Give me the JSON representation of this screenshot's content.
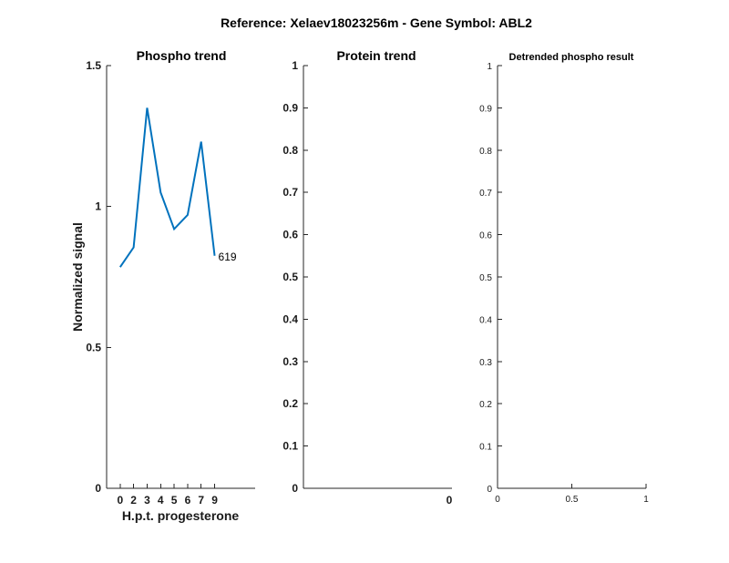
{
  "figure": {
    "suptitle": "Reference:  Xelaev18023256m - Gene Symbol:  ABL2"
  },
  "chart_data": [
    {
      "type": "line",
      "title": "Phospho trend",
      "xlabel": "H.p.t. progesterone",
      "ylabel": "Normalized signal",
      "xlim": [
        -1,
        10
      ],
      "ylim": [
        0,
        1.5
      ],
      "xticks": [
        "0",
        "2",
        "3",
        "4",
        "5",
        "6",
        "7",
        "9"
      ],
      "yticks": [
        "0",
        "0.5",
        "1",
        "1.5"
      ],
      "grid": false,
      "line_color": "#0072BD",
      "series": [
        {
          "x": [
            "0",
            "2",
            "3",
            "4",
            "5",
            "6",
            "7",
            "9"
          ],
          "values": [
            0.785,
            0.855,
            1.35,
            1.05,
            0.92,
            0.97,
            1.23,
            0.825
          ]
        }
      ],
      "annotation": {
        "text": "619",
        "at_category": "9"
      }
    },
    {
      "type": "line",
      "title": "Protein trend",
      "xlabel": "",
      "ylabel": "",
      "ylim": [
        0,
        1
      ],
      "xticks": [
        "0"
      ],
      "yticks": [
        "0",
        "0.1",
        "0.2",
        "0.3",
        "0.4",
        "0.5",
        "0.6",
        "0.7",
        "0.8",
        "0.9",
        "1"
      ],
      "grid": false,
      "series": []
    },
    {
      "type": "line",
      "title": "Detrended phospho result",
      "xlabel": "",
      "ylabel": "",
      "xlim": [
        0,
        1
      ],
      "ylim": [
        0,
        1
      ],
      "xticks": [
        "0",
        "0.5",
        "1"
      ],
      "yticks": [
        "0",
        "0.1",
        "0.2",
        "0.3",
        "0.4",
        "0.5",
        "0.6",
        "0.7",
        "0.8",
        "0.9",
        "1"
      ],
      "grid": false,
      "series": []
    }
  ]
}
